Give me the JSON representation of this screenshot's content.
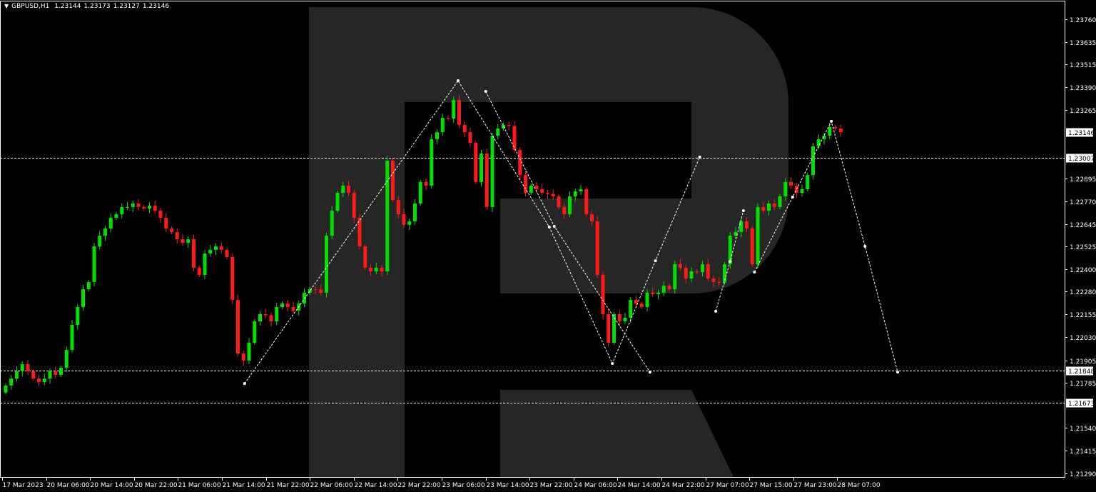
{
  "header": {
    "symbol": "GBPUSD,H1",
    "open": "1.23144",
    "high": "1.23173",
    "low": "1.23127",
    "close": "1.23146"
  },
  "chart_data": {
    "type": "candlestick",
    "title": "GBPUSD,H1",
    "ylim": [
      1.21225,
      1.23865
    ],
    "grid": false,
    "colors": {
      "bull": "#00e000",
      "bear": "#ff1a1a",
      "background": "#000000",
      "axis": "#ffffff",
      "watermark": "#262626",
      "lines": "#ffffff"
    },
    "first_open": 1.2173,
    "closes": [
      1.21768,
      1.21806,
      1.21845,
      1.21884,
      1.21845,
      1.21806,
      1.21787,
      1.21806,
      1.21845,
      1.21826,
      1.21865,
      1.21962,
      1.22098,
      1.22195,
      1.22292,
      1.22331,
      1.22525,
      1.22583,
      1.22622,
      1.2268,
      1.227,
      1.22739,
      1.22739,
      1.22758,
      1.22739,
      1.2273,
      1.22746,
      1.22719,
      1.2268,
      1.22622,
      1.22603,
      1.22564,
      1.22544,
      1.22564,
      1.22409,
      1.2237,
      1.22486,
      1.22506,
      1.22525,
      1.22506,
      1.22467,
      1.22234,
      1.21942,
      1.21904,
      1.22001,
      1.22117,
      1.22156,
      1.2215,
      1.22117,
      1.22195,
      1.22214,
      1.22195,
      1.22176,
      1.22214,
      1.22273,
      1.22292,
      1.2229,
      1.22273,
      1.22583,
      1.22719,
      1.22816,
      1.22855,
      1.22816,
      1.2268,
      1.22525,
      1.22409,
      1.22389,
      1.22409,
      1.22389,
      1.22991,
      1.22777,
      1.227,
      1.22642,
      1.22661,
      1.22758,
      1.22875,
      1.22855,
      1.23108,
      1.23146,
      1.23224,
      1.2322,
      1.23321,
      1.23185,
      1.23146,
      1.23088,
      1.22875,
      1.2303,
      1.22739,
      1.23127,
      1.23166,
      1.23185,
      1.2318,
      1.23049,
      1.22913,
      1.22816,
      1.22855,
      1.22836,
      1.22816,
      1.2281,
      1.22797,
      1.22739,
      1.227,
      1.22797,
      1.22824,
      1.22836,
      1.227,
      1.22661,
      1.2237,
      1.22156,
      1.22001,
      1.22156,
      1.22117,
      1.22137,
      1.22234,
      1.22214,
      1.22195,
      1.22273,
      1.22265,
      1.22273,
      1.22311,
      1.22292,
      1.22428,
      1.22409,
      1.2235,
      1.22389,
      1.22385,
      1.22428,
      1.2235,
      1.22331,
      1.22328,
      1.22428,
      1.22583,
      1.22603,
      1.22661,
      1.22622,
      1.22428,
      1.22739,
      1.22719,
      1.22758,
      1.22739,
      1.22797,
      1.22875,
      1.22855,
      1.22816,
      1.22836,
      1.22913,
      1.23069,
      1.23108,
      1.23127,
      1.23174,
      1.23166,
      1.23146
    ],
    "y_ticks": [
      "1.23760",
      "1.23635",
      "1.23515",
      "1.23390",
      "1.23265",
      "1.22895",
      "1.22770",
      "1.22645",
      "1.22525",
      "1.22400",
      "1.22280",
      "1.22155",
      "1.22030",
      "1.21905",
      "1.21785",
      "1.21540",
      "1.21415",
      "1.21290"
    ],
    "x_ticks": [
      "17 Mar 2023",
      "20 Mar 06:00",
      "20 Mar 14:00",
      "20 Mar 22:00",
      "21 Mar 06:00",
      "21 Mar 14:00",
      "21 Mar 22:00",
      "22 Mar 06:00",
      "22 Mar 14:00",
      "22 Mar 22:00",
      "23 Mar 06:00",
      "23 Mar 14:00",
      "23 Mar 22:00",
      "24 Mar 06:00",
      "24 Mar 14:00",
      "24 Mar 22:00",
      "27 Mar 07:00",
      "27 Mar 15:00",
      "27 Mar 23:00",
      "28 Mar 07:00"
    ],
    "levels": [
      {
        "price": 1.23146,
        "label": "1.23146",
        "line": false
      },
      {
        "price": 1.23007,
        "label": "1.23007",
        "line": true
      },
      {
        "price": 1.21848,
        "label": "1.21848",
        "line": true
      },
      {
        "price": 1.21673,
        "label": "1.21673",
        "line": true
      }
    ],
    "forecast_paths": [
      [
        [
          43.2,
          1.21779
        ],
        [
          81.8,
          1.23426
        ],
        [
          98.3,
          1.2263
        ],
        [
          109.7,
          1.21888
        ],
        [
          117.5,
          1.22447
        ],
        [
          125.5,
          1.23011
        ]
      ],
      [
        [
          86.8,
          1.23368
        ],
        [
          99.2,
          1.22634
        ],
        [
          116.5,
          1.21841
        ]
      ],
      [
        [
          128.4,
          1.22172
        ],
        [
          131.0,
          1.22443
        ],
        [
          133.4,
          1.22719
        ]
      ],
      [
        [
          135.4,
          1.22385
        ],
        [
          142.3,
          1.22793
        ],
        [
          149.3,
          1.23205
        ],
        [
          155.4,
          1.22525
        ],
        [
          161.3,
          1.21841
        ]
      ]
    ]
  }
}
